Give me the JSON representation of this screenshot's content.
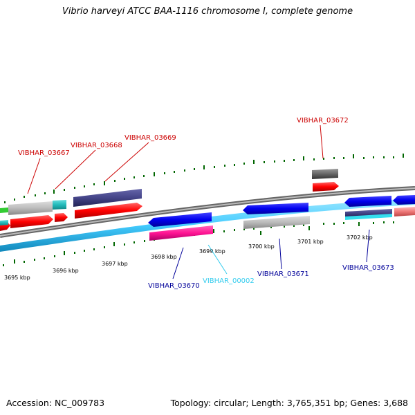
{
  "title": "Vibrio harveyi ATCC BAA-1116 chromosome I, complete genome",
  "footer": {
    "accession": "Accession: NC_009783",
    "topology": "Topology: circular; Length: 3,765,351 bp; Genes: 3,688"
  },
  "ticks": [
    "3695 kbp",
    "3696 kbp",
    "3697 kbp",
    "3698 kbp",
    "3699 kbp",
    "3700 kbp",
    "3701 kbp",
    "3702 kbp"
  ],
  "genes": {
    "vibhar_03667": "VIBHAR_03667",
    "vibhar_03668": "VIBHAR_03668",
    "vibhar_03669": "VIBHAR_03669",
    "vibhar_03672": "VIBHAR_03672",
    "vibhar_03670": "VIBHAR_03670",
    "vibhar_00002": "VIBHAR_00002",
    "vibhar_03671": "VIBHAR_03671",
    "vibhar_03673": "VIBHAR_03673"
  },
  "colors": {
    "forward_cds": "#ff0000",
    "reverse_cds": "#0000ee",
    "reverse_rrna": "#44ccff",
    "grey_feature": "#bbbbbb",
    "dark_feature": "#444488",
    "magenta_feature": "#ff1493",
    "tick_green": "#006600",
    "backbone": "#888888"
  }
}
